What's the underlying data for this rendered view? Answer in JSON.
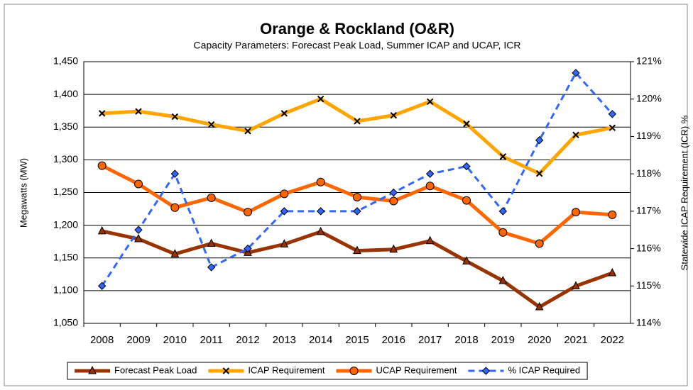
{
  "chart_data": {
    "type": "line",
    "title": "Orange & Rockland (O&R)",
    "subtitle": "Capacity Parameters: Forecast Peak Load, Summer ICAP and UCAP, ICR",
    "y_label": "Megawatts  (MW)",
    "y2_label": "Statewide  ICAP Requirement  (ICR) %",
    "categories": [
      "2008",
      "2009",
      "2010",
      "2011",
      "2012",
      "2013",
      "2014",
      "2015",
      "2016",
      "2017",
      "2018",
      "2019",
      "2020",
      "2021",
      "2022"
    ],
    "series": [
      {
        "name": "Forecast  Peak Load",
        "color": "#993300",
        "marker": "triangle",
        "values": [
          1191,
          1179,
          1156,
          1172,
          1158,
          1171,
          1190,
          1161,
          1163,
          1176,
          1145,
          1115,
          1075,
          1107,
          1127
        ]
      },
      {
        "name": "ICAP Requirement",
        "color": "#ffa500",
        "marker": "x",
        "values": [
          1371,
          1374,
          1366,
          1354,
          1344,
          1371,
          1393,
          1359,
          1368,
          1389,
          1355,
          1305,
          1279,
          1338,
          1349
        ]
      },
      {
        "name": "UCAP Requirement",
        "color": "#ff6600",
        "marker": "circle",
        "values": [
          1291,
          1263,
          1227,
          1242,
          1220,
          1248,
          1266,
          1243,
          1237,
          1260,
          1238,
          1189,
          1172,
          1220,
          1216
        ]
      },
      {
        "name": "% ICAP Required",
        "color": "#3366ff",
        "marker": "diamond",
        "dashed": true,
        "axis": "y2",
        "values": [
          115,
          116.5,
          118,
          115.5,
          116,
          117,
          117,
          117,
          117.5,
          118,
          118.2,
          117,
          118.9,
          120.7,
          119.6
        ]
      }
    ],
    "ylim": [
      1050,
      1450
    ],
    "yticks": [
      {
        "value": 1050,
        "label": "1,050"
      },
      {
        "value": 1100,
        "label": "1,100"
      },
      {
        "value": 1150,
        "label": "1,150"
      },
      {
        "value": 1200,
        "label": "1,200"
      },
      {
        "value": 1250,
        "label": "1,250"
      },
      {
        "value": 1300,
        "label": "1,300"
      },
      {
        "value": 1350,
        "label": "1,350"
      },
      {
        "value": 1400,
        "label": "1,400"
      },
      {
        "value": 1450,
        "label": "1,450"
      }
    ],
    "y2lim": [
      114,
      121
    ],
    "y2ticks": [
      {
        "value": 114,
        "label": "114%"
      },
      {
        "value": 115,
        "label": "115%"
      },
      {
        "value": 116,
        "label": "116%"
      },
      {
        "value": 117,
        "label": "117%"
      },
      {
        "value": 118,
        "label": "118%"
      },
      {
        "value": 119,
        "label": "119%"
      },
      {
        "value": 120,
        "label": "120%"
      },
      {
        "value": 121,
        "label": "121%"
      }
    ],
    "grid": true,
    "legend": "bottom"
  }
}
